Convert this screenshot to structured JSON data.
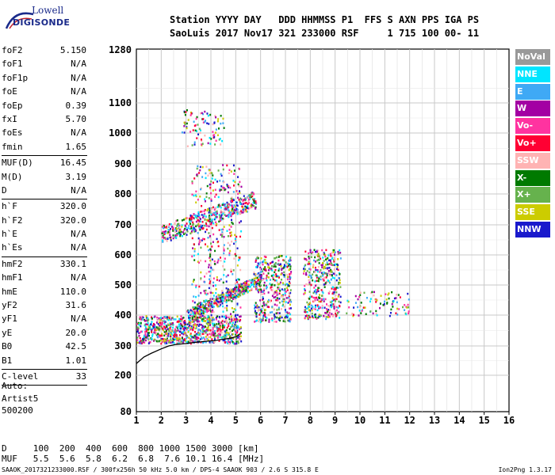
{
  "logo": {
    "line1": "Lowell",
    "line2": "DIGISONDE"
  },
  "header": {
    "line1": "Station YYYY DAY   DDD HHMMSS P1  FFS S AXN PPS IGA PS",
    "line2": "SaoLuis 2017 Nov17 321 233000 RSF     1 715 100 00- 11"
  },
  "params": [
    {
      "key": "foF2",
      "value": "5.150"
    },
    {
      "key": "foF1",
      "value": "N/A"
    },
    {
      "key": "foF1p",
      "value": "N/A"
    },
    {
      "key": "foE",
      "value": "N/A"
    },
    {
      "key": "foEp",
      "value": "0.39"
    },
    {
      "key": "fxI",
      "value": "5.70"
    },
    {
      "key": "foEs",
      "value": "N/A"
    },
    {
      "key": "fmin",
      "value": "1.65",
      "sep": true
    },
    {
      "key": "MUF(D)",
      "value": "16.45"
    },
    {
      "key": "M(D)",
      "value": "3.19"
    },
    {
      "key": "D",
      "value": "N/A",
      "sep": true
    },
    {
      "key": "h`F",
      "value": "320.0"
    },
    {
      "key": "h`F2",
      "value": "320.0"
    },
    {
      "key": "h`E",
      "value": "N/A"
    },
    {
      "key": "h`Es",
      "value": "N/A",
      "sep": true
    },
    {
      "key": "hmF2",
      "value": "330.1"
    },
    {
      "key": "hmF1",
      "value": "N/A"
    },
    {
      "key": "hmE",
      "value": "110.0"
    },
    {
      "key": "yF2",
      "value": "31.6"
    },
    {
      "key": "yF1",
      "value": "N/A"
    },
    {
      "key": "yE",
      "value": "20.0"
    },
    {
      "key": "B0",
      "value": "42.5"
    },
    {
      "key": "B1",
      "value": "1.01",
      "sep": true
    },
    {
      "key": "C-level",
      "value": "33",
      "sep": true
    }
  ],
  "auto": {
    "line1": "Auto:",
    "line2": "Artist5",
    "line3": "500200"
  },
  "dmuf": {
    "d_line": "D     100  200  400  600  800 1000 1500 3000 [km]",
    "muf_line": "MUF   5.5  5.6  5.8  6.2  6.8  7.6 10.1 16.4 [MHz]"
  },
  "footer": {
    "left": "SAAOK_2017321233000.RSF / 300fx256h 50 kHz 5.0 km / DPS-4 SAAOK 903 / 2.6 S 315.8 E",
    "right": "Ion2Png 1.3.17"
  },
  "legend": [
    {
      "label": "NoVal",
      "color": "#999999"
    },
    {
      "label": "NNE",
      "color": "#00e5ff"
    },
    {
      "label": "E",
      "color": "#3fa9f5"
    },
    {
      "label": "W",
      "color": "#a300a3"
    },
    {
      "label": "Vo-",
      "color": "#ff33a0"
    },
    {
      "label": "Vo+",
      "color": "#ff0033"
    },
    {
      "label": "SSW",
      "color": "#ffb3b3"
    },
    {
      "label": "X-",
      "color": "#007a00"
    },
    {
      "label": "X+",
      "color": "#66b24d"
    },
    {
      "label": "SSE",
      "color": "#cccc00"
    },
    {
      "label": "NNW",
      "color": "#1a1acc"
    }
  ],
  "chart_data": {
    "type": "scatter",
    "title": "",
    "xlabel": "",
    "ylabel": "",
    "x_ticks": [
      "1",
      "2",
      "3",
      "4",
      "5",
      "6",
      "7",
      "8",
      "9",
      "10",
      "11",
      "12",
      "13",
      "14",
      "15",
      "16"
    ],
    "y_ticks": [
      "80",
      "200",
      "300",
      "400",
      "500",
      "600",
      "700",
      "800",
      "900",
      "1000",
      "1100",
      "1280"
    ],
    "xlim": [
      1,
      16
    ],
    "ylim": [
      80,
      1280
    ],
    "grid": true,
    "legend_position": "right",
    "clusters": [
      {
        "name": "F-trace low",
        "x": [
          1.0,
          5.2
        ],
        "y": [
          310,
          400
        ],
        "density": "high"
      },
      {
        "name": "F-trace rising",
        "x": [
          3.0,
          6.0
        ],
        "y": [
          380,
          500
        ],
        "density": "medium"
      },
      {
        "name": "F-spread",
        "x": [
          3.2,
          5.2
        ],
        "y": [
          400,
          900
        ],
        "density": "medium"
      },
      {
        "name": "second hop",
        "x": [
          2.0,
          5.8
        ],
        "y": [
          640,
          780
        ],
        "density": "medium"
      },
      {
        "name": "third hop",
        "x": [
          2.8,
          4.5
        ],
        "y": [
          960,
          1080
        ],
        "density": "low"
      },
      {
        "name": "cluster 6-7",
        "x": [
          5.7,
          7.2
        ],
        "y": [
          380,
          600
        ],
        "density": "medium"
      },
      {
        "name": "cluster 8-9",
        "x": [
          7.7,
          9.2
        ],
        "y": [
          390,
          620
        ],
        "density": "medium"
      },
      {
        "name": "tail 9-12",
        "x": [
          9.3,
          12
        ],
        "y": [
          400,
          480
        ],
        "density": "low"
      }
    ],
    "trace_points": [
      [
        1.0,
        240
      ],
      [
        1.3,
        262
      ],
      [
        1.6,
        275
      ],
      [
        2.0,
        290
      ],
      [
        2.3,
        300
      ],
      [
        2.6,
        305
      ],
      [
        3.0,
        308
      ],
      [
        3.4,
        312
      ],
      [
        3.8,
        315
      ],
      [
        4.2,
        318
      ],
      [
        4.5,
        322
      ],
      [
        4.8,
        325
      ],
      [
        5.0,
        330
      ],
      [
        5.1,
        334
      ],
      [
        5.15,
        338
      ]
    ]
  }
}
